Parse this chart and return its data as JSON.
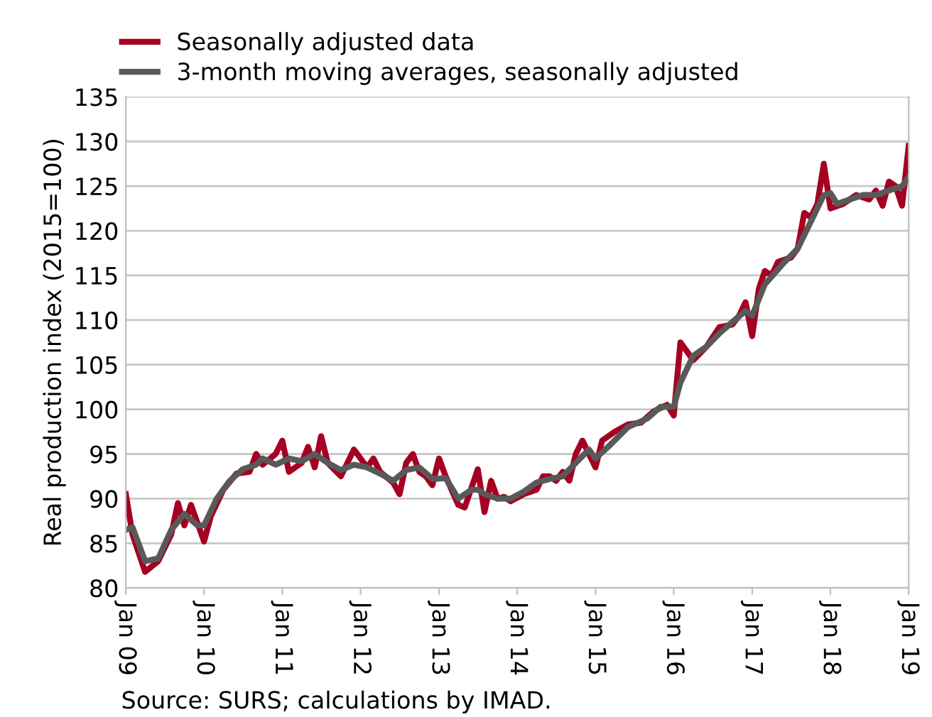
{
  "chart_data": {
    "type": "line",
    "ylabel": "Real production index (2015=100)",
    "xlim": [
      "2009-01",
      "2019-01"
    ],
    "xticks": [
      {
        "value": "2009-01",
        "label": "Jan 09"
      },
      {
        "value": "2010-01",
        "label": "Jan 10"
      },
      {
        "value": "2011-01",
        "label": "Jan 11"
      },
      {
        "value": "2012-01",
        "label": "Jan 12"
      },
      {
        "value": "2013-01",
        "label": "Jan 13"
      },
      {
        "value": "2014-01",
        "label": "Jan 14"
      },
      {
        "value": "2015-01",
        "label": "Jan 15"
      },
      {
        "value": "2016-01",
        "label": "Jan 16"
      },
      {
        "value": "2017-01",
        "label": "Jan 17"
      },
      {
        "value": "2018-01",
        "label": "Jan 18"
      },
      {
        "value": "2019-01",
        "label": "Jan 19"
      }
    ],
    "ylim": [
      80,
      135
    ],
    "yticks": [
      80,
      85,
      90,
      95,
      100,
      105,
      110,
      115,
      120,
      125,
      130,
      135
    ],
    "grid": "y",
    "legend": "top left",
    "annotations": [
      "Source: SURS; calculations by IMAD."
    ],
    "series": [
      {
        "name": "Seasonally adjusted data",
        "color": "#a50021",
        "x": [
          "2009-01",
          "2009-02",
          "2009-04",
          "2009-06",
          "2009-08",
          "2009-09",
          "2009-10",
          "2009-11",
          "2010-01",
          "2010-02",
          "2010-04",
          "2010-06",
          "2010-08",
          "2010-09",
          "2010-10",
          "2010-12",
          "2011-01",
          "2011-02",
          "2011-04",
          "2011-05",
          "2011-06",
          "2011-07",
          "2011-08",
          "2011-10",
          "2011-12",
          "2012-02",
          "2012-03",
          "2012-04",
          "2012-06",
          "2012-07",
          "2012-08",
          "2012-09",
          "2012-10",
          "2012-11",
          "2012-12",
          "2013-01",
          "2013-02",
          "2013-04",
          "2013-05",
          "2013-07",
          "2013-08",
          "2013-09",
          "2013-10",
          "2013-11",
          "2013-12",
          "2014-02",
          "2014-04",
          "2014-05",
          "2014-06",
          "2014-07",
          "2014-08",
          "2014-09",
          "2014-10",
          "2014-11",
          "2015-01",
          "2015-02",
          "2015-04",
          "2015-06",
          "2015-08",
          "2015-10",
          "2015-12",
          "2016-01",
          "2016-02",
          "2016-04",
          "2016-06",
          "2016-08",
          "2016-10",
          "2016-11",
          "2016-12",
          "2017-01",
          "2017-02",
          "2017-03",
          "2017-04",
          "2017-05",
          "2017-07",
          "2017-08",
          "2017-09",
          "2017-10",
          "2017-11",
          "2017-12",
          "2018-01",
          "2018-03",
          "2018-05",
          "2018-07",
          "2018-08",
          "2018-09",
          "2018-10",
          "2018-11",
          "2018-12",
          "2019-01"
        ],
        "values": [
          90.5,
          86,
          81.8,
          83,
          86,
          89.5,
          87,
          89.3,
          85.2,
          88,
          91,
          92.8,
          93,
          95,
          93.8,
          95,
          96.5,
          93,
          94,
          95.8,
          93.5,
          97,
          94,
          92.5,
          95.5,
          93.5,
          94.5,
          93,
          91.8,
          90.5,
          94,
          95,
          93,
          92.5,
          91.5,
          94.5,
          92.5,
          89.3,
          89,
          93.3,
          88.5,
          92,
          90,
          90.2,
          89.7,
          90.5,
          91,
          92.5,
          92.5,
          92,
          93,
          92,
          95,
          96.5,
          93.5,
          96.5,
          97.5,
          98.3,
          98.5,
          99.8,
          100.5,
          99.3,
          107.5,
          105.5,
          107,
          109.2,
          109.5,
          110.5,
          112,
          108.2,
          113.5,
          115.5,
          115,
          116.5,
          117,
          118,
          122,
          121.5,
          123,
          127.5,
          122.5,
          123,
          124,
          123.5,
          124.5,
          122.8,
          125.5,
          125,
          122.8,
          129.5
        ]
      },
      {
        "name": "3-month moving averages, seasonally adjusted",
        "color": "#595959",
        "x": [
          "2009-01",
          "2009-02",
          "2009-04",
          "2009-06",
          "2009-08",
          "2009-10",
          "2009-12",
          "2010-01",
          "2010-03",
          "2010-05",
          "2010-07",
          "2010-09",
          "2010-10",
          "2010-12",
          "2011-02",
          "2011-04",
          "2011-06",
          "2011-08",
          "2011-10",
          "2011-12",
          "2012-02",
          "2012-04",
          "2012-06",
          "2012-08",
          "2012-10",
          "2012-12",
          "2013-02",
          "2013-04",
          "2013-06",
          "2013-07",
          "2013-08",
          "2013-10",
          "2013-12",
          "2014-02",
          "2014-04",
          "2014-06",
          "2014-08",
          "2014-10",
          "2014-12",
          "2015-01",
          "2015-03",
          "2015-06",
          "2015-09",
          "2015-11",
          "2016-01",
          "2016-02",
          "2016-04",
          "2016-06",
          "2016-08",
          "2016-10",
          "2016-12",
          "2017-01",
          "2017-03",
          "2017-06",
          "2017-08",
          "2017-10",
          "2017-12",
          "2018-01",
          "2018-02",
          "2018-04",
          "2018-06",
          "2018-08",
          "2018-10",
          "2018-12",
          "2019-01"
        ],
        "values": [
          86.5,
          86.8,
          83,
          83.3,
          86.5,
          88.3,
          87,
          87,
          90,
          92,
          93.3,
          93.8,
          94.5,
          93.8,
          94.5,
          94.2,
          95,
          94,
          93.2,
          93.8,
          93.5,
          92.8,
          92,
          93.2,
          93.5,
          92.2,
          92.3,
          90,
          91,
          91,
          90.5,
          90,
          90,
          90.8,
          91.8,
          92.2,
          92.5,
          94,
          95.5,
          94.5,
          95.8,
          98,
          99,
          100.3,
          100.3,
          103,
          106,
          107,
          108.5,
          109.8,
          111,
          110.5,
          114,
          116.5,
          118,
          121,
          124,
          124.2,
          123,
          123.5,
          124,
          124,
          124.5,
          125,
          126
        ]
      }
    ]
  }
}
